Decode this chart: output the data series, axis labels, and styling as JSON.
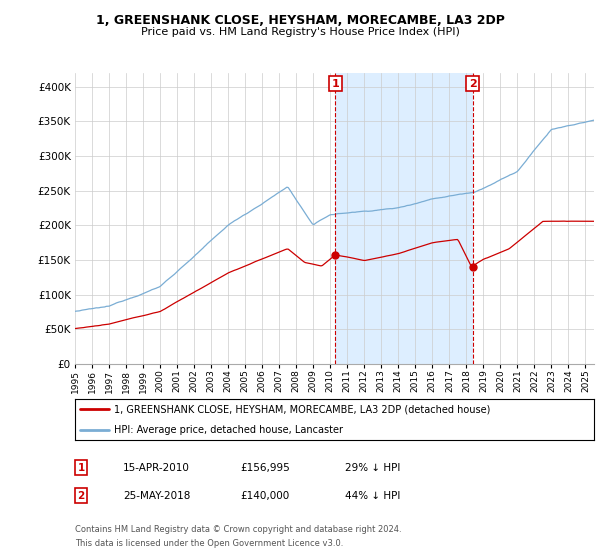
{
  "title": "1, GREENSHANK CLOSE, HEYSHAM, MORECAMBE, LA3 2DP",
  "subtitle": "Price paid vs. HM Land Registry's House Price Index (HPI)",
  "legend_line1": "1, GREENSHANK CLOSE, HEYSHAM, MORECAMBE, LA3 2DP (detached house)",
  "legend_line2": "HPI: Average price, detached house, Lancaster",
  "annotation1_date": "15-APR-2010",
  "annotation1_price": "£156,995",
  "annotation1_hpi": "29% ↓ HPI",
  "annotation2_date": "25-MAY-2018",
  "annotation2_price": "£140,000",
  "annotation2_hpi": "44% ↓ HPI",
  "footer1": "Contains HM Land Registry data © Crown copyright and database right 2024.",
  "footer2": "This data is licensed under the Open Government Licence v3.0.",
  "background_color": "#ffffff",
  "plot_bg_color": "#ffffff",
  "hpi_color": "#7aadd4",
  "price_color": "#cc0000",
  "annotation_color": "#cc0000",
  "shade_color": "#ddeeff",
  "grid_color": "#cccccc",
  "ylim": [
    0,
    420000
  ],
  "yticks": [
    0,
    50000,
    100000,
    150000,
    200000,
    250000,
    300000,
    350000,
    400000
  ],
  "x_start_year": 1995,
  "x_end_year": 2025,
  "sale1_year_float": 2010.29,
  "sale2_year_float": 2018.37,
  "sale1_price": 156995,
  "sale2_price": 140000
}
